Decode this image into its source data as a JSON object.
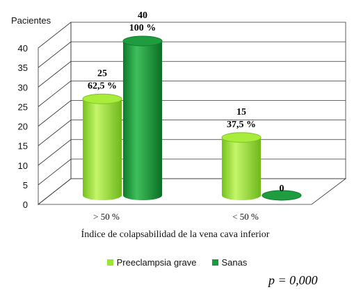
{
  "chart_data": {
    "type": "bar",
    "style": "3d-cylinder",
    "ylabel": "Pacientes",
    "xlabel": "Índice de colapsabilidad de la vena cava inferior",
    "ylim": [
      0,
      40
    ],
    "yticks": [
      "0",
      "5",
      "10",
      "15",
      "20",
      "25",
      "30",
      "35",
      "40"
    ],
    "categories": [
      "> 50 %",
      "< 50 %"
    ],
    "series": [
      {
        "name": "Preeclampsia grave",
        "color": "#99e633",
        "values": [
          25,
          15
        ],
        "labels": [
          "25",
          "15"
        ],
        "percents": [
          "62,5 %",
          "37,5 %"
        ]
      },
      {
        "name": "Sanas",
        "color": "#1a9a3c",
        "values": [
          40,
          0
        ],
        "labels": [
          "40",
          "0"
        ],
        "percents": [
          "100 %",
          ""
        ]
      }
    ],
    "legend_position": "bottom",
    "grid": true
  },
  "annotation": {
    "p_value": "p = 0,000"
  }
}
